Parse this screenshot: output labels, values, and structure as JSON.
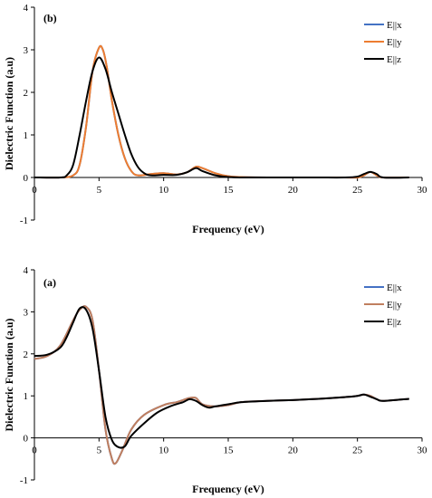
{
  "chart_data": [
    {
      "panel_label": "(b)",
      "type": "line",
      "xlabel": "Frequency (eV)",
      "ylabel": "Dielectric Function (a.u)",
      "xlim": [
        0,
        30
      ],
      "ylim": [
        -1,
        4
      ],
      "xticks": [
        "0",
        "5",
        "10",
        "15",
        "20",
        "25",
        "30"
      ],
      "yticks": [
        "-1",
        "0",
        "1",
        "2",
        "3",
        "4"
      ],
      "grid": false,
      "legend_position": "top-right",
      "series": [
        {
          "name": "E||x",
          "color": "#4472c4",
          "x": [
            0,
            2,
            3,
            3.5,
            4,
            4.5,
            5,
            5.3,
            5.6,
            6,
            6.5,
            7,
            7.5,
            8,
            9,
            10,
            11,
            11.8,
            12.5,
            13,
            14,
            15,
            16,
            18,
            20,
            22,
            24,
            25,
            25.5,
            26,
            26.5,
            27,
            29
          ],
          "y": [
            0,
            0,
            0.05,
            0.3,
            1.2,
            2.5,
            3.05,
            3.0,
            2.6,
            1.8,
            1.0,
            0.45,
            0.15,
            0.05,
            0.08,
            0.1,
            0.07,
            0.12,
            0.25,
            0.22,
            0.1,
            0.03,
            0.01,
            0,
            0,
            0,
            0,
            0,
            0.05,
            0.13,
            0.05,
            0,
            0
          ]
        },
        {
          "name": "E||y",
          "color": "#ed7d31",
          "x": [
            0,
            2,
            3,
            3.5,
            4,
            4.5,
            5,
            5.3,
            5.6,
            6,
            6.5,
            7,
            7.5,
            8,
            9,
            10,
            11,
            11.8,
            12.5,
            13,
            14,
            15,
            16,
            18,
            20,
            22,
            24,
            25,
            25.5,
            26,
            26.5,
            27,
            29
          ],
          "y": [
            0,
            0,
            0.05,
            0.3,
            1.2,
            2.5,
            3.05,
            3.0,
            2.6,
            1.8,
            1.0,
            0.45,
            0.15,
            0.05,
            0.08,
            0.1,
            0.07,
            0.12,
            0.25,
            0.22,
            0.1,
            0.03,
            0.01,
            0,
            0,
            0,
            0,
            0,
            0.05,
            0.13,
            0.05,
            0,
            0
          ]
        },
        {
          "name": "E||z",
          "color": "#000000",
          "x": [
            0,
            2,
            2.5,
            3,
            3.5,
            4,
            4.5,
            5,
            5.5,
            6,
            6.5,
            7,
            7.5,
            8,
            8.5,
            9,
            10,
            11,
            11.8,
            12.5,
            13,
            14,
            15,
            16,
            18,
            20,
            22,
            24,
            25,
            25.5,
            26,
            26.5,
            27,
            29
          ],
          "y": [
            0,
            0,
            0.05,
            0.3,
            1.0,
            1.8,
            2.5,
            2.82,
            2.55,
            2.0,
            1.5,
            1.0,
            0.55,
            0.25,
            0.1,
            0.05,
            0.06,
            0.06,
            0.12,
            0.22,
            0.15,
            0.05,
            0.01,
            0,
            0,
            0,
            0,
            0,
            0.02,
            0.08,
            0.13,
            0.08,
            0,
            0
          ]
        }
      ]
    },
    {
      "panel_label": "(a)",
      "type": "line",
      "xlabel": "Frequency (eV)",
      "ylabel": "Dielectric Function (a.u)",
      "xlim": [
        0,
        30
      ],
      "ylim": [
        -1,
        4
      ],
      "xticks": [
        "0",
        "5",
        "10",
        "15",
        "20",
        "25",
        "30"
      ],
      "yticks": [
        "-1",
        "0",
        "1",
        "2",
        "3",
        "4"
      ],
      "grid": false,
      "legend_position": "top-right",
      "series": [
        {
          "name": "E||x",
          "color": "#4472c4",
          "x": [
            0,
            1,
            2,
            3,
            3.5,
            4,
            4.5,
            5,
            5.5,
            6,
            6.3,
            6.8,
            7.5,
            8.5,
            10,
            11,
            11.5,
            12,
            12.5,
            13,
            14,
            15,
            16,
            18,
            20,
            22,
            24,
            25,
            25.5,
            26,
            26.5,
            27,
            29
          ],
          "y": [
            1.88,
            1.95,
            2.2,
            2.8,
            3.05,
            3.12,
            2.8,
            1.6,
            0.2,
            -0.5,
            -0.6,
            -0.3,
            0.2,
            0.55,
            0.78,
            0.85,
            0.9,
            0.95,
            0.95,
            0.8,
            0.75,
            0.78,
            0.85,
            0.88,
            0.9,
            0.93,
            0.97,
            1.0,
            1.03,
            1.0,
            0.92,
            0.88,
            0.93
          ]
        },
        {
          "name": "E||y",
          "color": "#c07f5f",
          "x": [
            0,
            1,
            2,
            3,
            3.5,
            4,
            4.5,
            5,
            5.5,
            6,
            6.3,
            6.8,
            7.5,
            8.5,
            10,
            11,
            11.5,
            12,
            12.5,
            13,
            14,
            15,
            16,
            18,
            20,
            22,
            24,
            25,
            25.5,
            26,
            26.5,
            27,
            29
          ],
          "y": [
            1.88,
            1.95,
            2.2,
            2.8,
            3.05,
            3.12,
            2.8,
            1.6,
            0.2,
            -0.5,
            -0.6,
            -0.3,
            0.2,
            0.55,
            0.78,
            0.85,
            0.9,
            0.95,
            0.95,
            0.8,
            0.75,
            0.78,
            0.85,
            0.88,
            0.9,
            0.93,
            0.97,
            1.0,
            1.03,
            1.0,
            0.92,
            0.88,
            0.93
          ]
        },
        {
          "name": "E||z",
          "color": "#000000",
          "x": [
            0,
            1,
            2,
            2.5,
            3,
            3.5,
            4,
            4.5,
            5,
            5.5,
            6,
            6.5,
            7,
            7.5,
            8.5,
            9.5,
            10.5,
            11.5,
            12,
            12.5,
            13,
            13.5,
            14,
            15,
            16,
            18,
            20,
            22,
            24,
            25,
            25.5,
            26,
            26.5,
            27,
            29
          ],
          "y": [
            1.95,
            1.98,
            2.15,
            2.4,
            2.75,
            3.08,
            3.05,
            2.6,
            1.6,
            0.5,
            -0.05,
            -0.22,
            -0.2,
            0.05,
            0.35,
            0.6,
            0.75,
            0.85,
            0.92,
            0.88,
            0.78,
            0.72,
            0.75,
            0.8,
            0.85,
            0.88,
            0.9,
            0.93,
            0.97,
            1.0,
            1.03,
            0.98,
            0.92,
            0.88,
            0.93
          ]
        }
      ]
    }
  ]
}
